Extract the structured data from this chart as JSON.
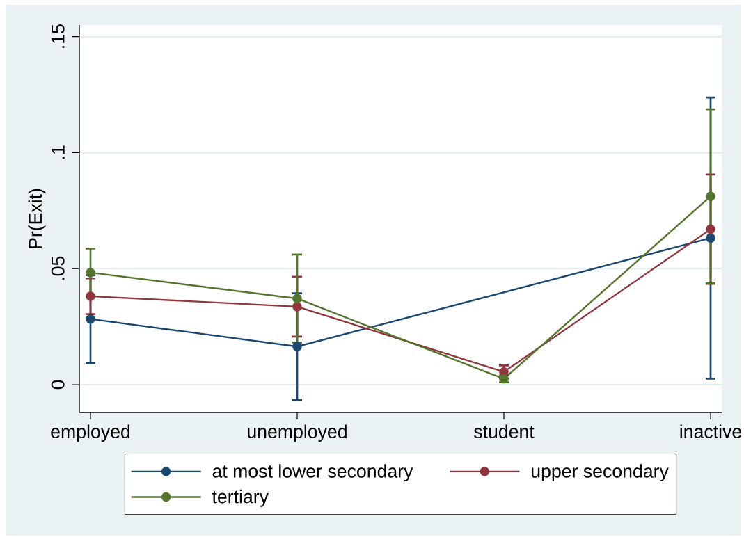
{
  "chart_data": {
    "type": "line",
    "ylabel": "Pr(Exit)",
    "categories": [
      "employed",
      "unemployed",
      "student",
      "inactive"
    ],
    "series": [
      {
        "name": "at most lower secondary",
        "color": "#1a476f",
        "values": [
          0.0283,
          0.0164,
          null,
          0.0632
        ],
        "errors": [
          0.0189,
          0.023,
          null,
          0.0606
        ]
      },
      {
        "name": "upper secondary",
        "color": "#90353b",
        "values": [
          0.0381,
          0.0336,
          0.0055,
          0.067
        ],
        "errors": [
          0.0077,
          0.0129,
          0.0028,
          0.0236
        ]
      },
      {
        "name": "tertiary",
        "color": "#55752f",
        "values": [
          0.0483,
          0.0371,
          0.0025,
          0.0812
        ],
        "errors": [
          0.0103,
          0.019,
          0.0015,
          0.0375
        ]
      }
    ],
    "ylim": [
      -0.012,
      0.155
    ],
    "yticks": [
      0,
      {
        "value": 0.05,
        "label": ".05"
      },
      {
        "value": 0.1,
        "label": ".1"
      },
      {
        "value": 0.15,
        "label": ".15"
      }
    ],
    "grid": "y",
    "legend": "bottom",
    "marker": "circle",
    "line_style": "solid"
  }
}
